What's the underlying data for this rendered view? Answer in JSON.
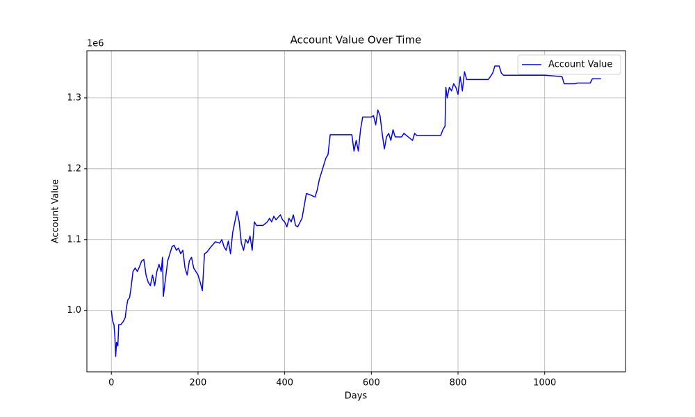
{
  "chart_data": {
    "type": "line",
    "title": "Account Value Over Time",
    "x_label": "Days",
    "y_label": "Account Value",
    "y_offset_label": "1e6",
    "x": [
      0,
      3,
      6,
      8,
      10,
      12,
      15,
      17,
      22,
      28,
      32,
      35,
      38,
      42,
      45,
      50,
      55,
      60,
      65,
      70,
      75,
      80,
      85,
      90,
      95,
      100,
      105,
      110,
      115,
      118,
      120,
      125,
      130,
      135,
      140,
      145,
      150,
      155,
      160,
      165,
      170,
      175,
      180,
      185,
      190,
      195,
      200,
      205,
      210,
      215,
      220,
      230,
      240,
      250,
      255,
      260,
      265,
      270,
      275,
      280,
      285,
      290,
      295,
      300,
      305,
      310,
      315,
      320,
      325,
      330,
      335,
      350,
      360,
      365,
      370,
      375,
      380,
      390,
      395,
      400,
      405,
      410,
      415,
      420,
      425,
      430,
      440,
      450,
      460,
      470,
      475,
      480,
      485,
      490,
      495,
      500,
      505,
      520,
      540,
      555,
      560,
      565,
      570,
      575,
      580,
      600,
      605,
      610,
      615,
      620,
      625,
      630,
      635,
      640,
      645,
      650,
      655,
      670,
      675,
      685,
      695,
      700,
      705,
      760,
      765,
      770,
      772,
      775,
      780,
      785,
      790,
      795,
      800,
      805,
      810,
      815,
      820,
      870,
      880,
      885,
      895,
      900,
      905,
      1000,
      1040,
      1045,
      1070,
      1075,
      1105,
      1110,
      1130
    ],
    "series": [
      {
        "name": "Account Value",
        "color": "#0000ff",
        "values": [
          1000000,
          985000,
          980000,
          965000,
          935000,
          955000,
          950000,
          980000,
          980000,
          985000,
          990000,
          1005000,
          1015000,
          1018000,
          1030000,
          1055000,
          1060000,
          1055000,
          1062000,
          1070000,
          1072000,
          1050000,
          1040000,
          1035000,
          1050000,
          1035000,
          1055000,
          1065000,
          1055000,
          1075000,
          1020000,
          1045000,
          1070000,
          1080000,
          1090000,
          1092000,
          1085000,
          1088000,
          1080000,
          1085000,
          1060000,
          1050000,
          1070000,
          1075000,
          1060000,
          1055000,
          1050000,
          1040000,
          1028000,
          1080000,
          1082000,
          1090000,
          1097000,
          1095000,
          1100000,
          1090000,
          1085000,
          1098000,
          1080000,
          1110000,
          1125000,
          1140000,
          1125000,
          1095000,
          1085000,
          1100000,
          1095000,
          1105000,
          1085000,
          1125000,
          1120000,
          1120000,
          1125000,
          1130000,
          1125000,
          1133000,
          1128000,
          1135000,
          1128000,
          1125000,
          1118000,
          1130000,
          1125000,
          1135000,
          1120000,
          1118000,
          1130000,
          1165000,
          1163000,
          1160000,
          1170000,
          1185000,
          1195000,
          1205000,
          1215000,
          1220000,
          1248000,
          1248000,
          1248000,
          1248000,
          1225000,
          1240000,
          1225000,
          1255000,
          1273000,
          1273000,
          1275000,
          1262000,
          1283000,
          1275000,
          1250000,
          1228000,
          1245000,
          1250000,
          1240000,
          1255000,
          1245000,
          1245000,
          1250000,
          1245000,
          1240000,
          1250000,
          1247000,
          1247000,
          1255000,
          1260000,
          1315000,
          1300000,
          1315000,
          1310000,
          1320000,
          1315000,
          1305000,
          1330000,
          1310000,
          1337000,
          1326000,
          1326000,
          1335000,
          1345000,
          1345000,
          1335000,
          1332000,
          1332000,
          1330000,
          1320000,
          1320000,
          1321000,
          1321000,
          1327000,
          1327000
        ]
      }
    ],
    "xlim": [
      -56.5,
      1186.5
    ],
    "xticks": [
      0,
      200,
      400,
      600,
      800,
      1000
    ],
    "ylim": [
      913400,
      1366600
    ],
    "yticks": [
      {
        "value": 1000000,
        "label": "1.0"
      },
      {
        "value": 1100000,
        "label": "1.1"
      },
      {
        "value": 1200000,
        "label": "1.2"
      },
      {
        "value": 1300000,
        "label": "1.3"
      }
    ],
    "grid": true,
    "legend": "upper right"
  }
}
